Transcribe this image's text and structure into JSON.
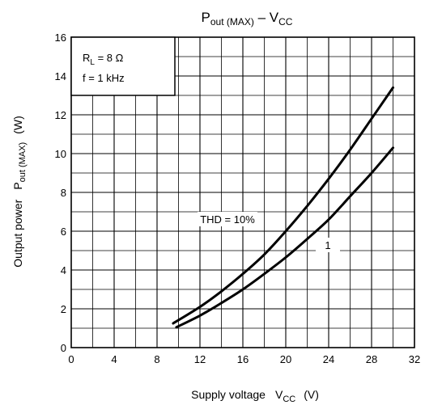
{
  "chart_data": {
    "type": "line",
    "title": {
      "main": "P",
      "sub": "out (MAX)",
      "sep": " – V",
      "sub2": "CC"
    },
    "xlabel": {
      "text": "Supply voltage",
      "symbol": "V",
      "symbol_sub": "CC",
      "unit": "(V)"
    },
    "ylabel": {
      "text": "Output power",
      "symbol": "P",
      "symbol_sub": "out (MAX)",
      "unit": "(W)"
    },
    "xlim": [
      0,
      32
    ],
    "ylim": [
      0,
      16
    ],
    "x_ticks": [
      "0",
      "4",
      "8",
      "12",
      "16",
      "20",
      "24",
      "28",
      "32"
    ],
    "y_ticks": [
      "0",
      "2",
      "4",
      "6",
      "8",
      "10",
      "12",
      "14",
      "16"
    ],
    "grid": true,
    "conditions": {
      "rl_symbol": "R",
      "rl_sub": "L",
      "rl_value": " = 8 Ω",
      "freq": "f = 1 kHz"
    },
    "series": [
      {
        "name": "THD = 10%",
        "x": [
          9.5,
          12,
          14,
          16,
          18,
          20,
          22,
          24,
          26,
          28,
          30
        ],
        "y": [
          1.25,
          2.1,
          2.9,
          3.8,
          4.8,
          6.0,
          7.3,
          8.7,
          10.2,
          11.8,
          13.4
        ]
      },
      {
        "name": "1",
        "x": [
          9.8,
          12,
          14,
          16,
          18,
          20,
          22,
          24,
          26,
          28,
          30
        ],
        "y": [
          1.05,
          1.65,
          2.3,
          3.0,
          3.8,
          4.65,
          5.6,
          6.6,
          7.8,
          9.0,
          10.3
        ]
      }
    ]
  }
}
